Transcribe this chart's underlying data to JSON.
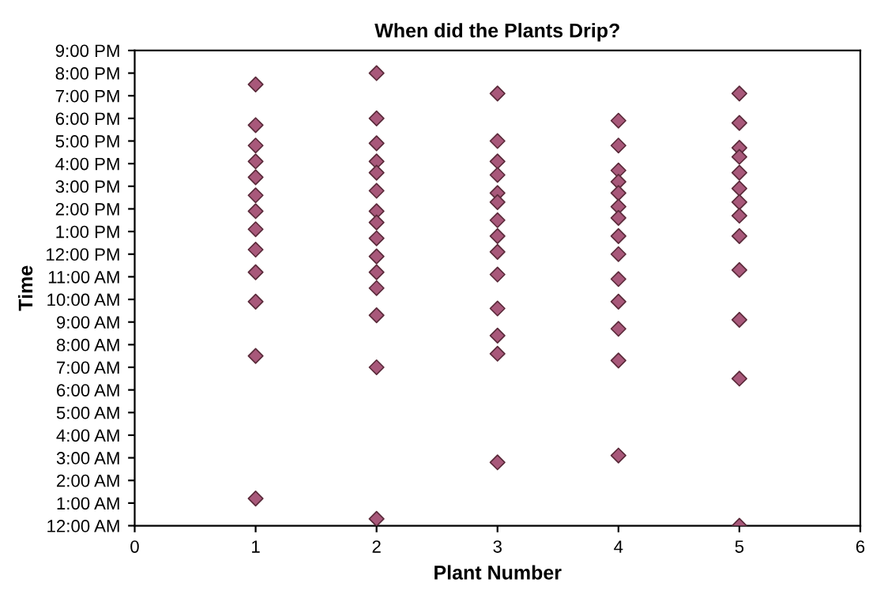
{
  "chart_data": {
    "type": "scatter",
    "title": "When did the Plants Drip?",
    "xlabel": "Plant Number",
    "ylabel": "Time",
    "series": [
      {
        "color": "#a8587a",
        "x": [
          1,
          1,
          1,
          1,
          1,
          1,
          1,
          1,
          1,
          1,
          1,
          1,
          1
        ],
        "values": [
          19.5,
          17.7,
          16.8,
          16.1,
          15.4,
          14.6,
          13.9,
          13.1,
          12.2,
          11.2,
          9.9,
          7.5,
          1.2
        ]
      },
      {
        "color": "#a8587a",
        "x": [
          2,
          2,
          2,
          2,
          2,
          2,
          2,
          2,
          2,
          2,
          2,
          2,
          2,
          2,
          2
        ],
        "values": [
          20.0,
          18.0,
          16.9,
          16.1,
          15.6,
          14.8,
          13.9,
          13.4,
          12.7,
          11.9,
          11.2,
          10.5,
          9.3,
          7.0,
          0.3
        ]
      },
      {
        "color": "#a8587a",
        "x": [
          3,
          3,
          3,
          3,
          3,
          3,
          3,
          3,
          3,
          3,
          3,
          3,
          3,
          3
        ],
        "values": [
          19.1,
          17.0,
          16.1,
          15.5,
          14.7,
          14.3,
          13.5,
          12.8,
          12.1,
          11.1,
          9.6,
          8.4,
          7.6,
          2.8
        ]
      },
      {
        "color": "#a8587a",
        "x": [
          4,
          4,
          4,
          4,
          4,
          4,
          4,
          4,
          4,
          4,
          4,
          4,
          4,
          4
        ],
        "values": [
          17.9,
          16.8,
          15.7,
          15.2,
          14.7,
          14.1,
          13.6,
          12.8,
          12.0,
          10.9,
          9.9,
          8.7,
          7.3,
          3.1
        ]
      },
      {
        "color": "#a8587a",
        "x": [
          5,
          5,
          5,
          5,
          5,
          5,
          5,
          5,
          5,
          5,
          5,
          5,
          5
        ],
        "values": [
          19.1,
          17.8,
          16.7,
          16.3,
          15.6,
          14.9,
          14.3,
          13.7,
          12.8,
          11.3,
          9.1,
          6.5,
          0.0
        ]
      }
    ],
    "xlim": [
      0,
      6
    ],
    "xticks": [
      0,
      1,
      2,
      3,
      4,
      5,
      6
    ],
    "ylim": [
      0,
      21
    ],
    "yticks": [
      {
        "value": 0,
        "label": "12:00 AM"
      },
      {
        "value": 1,
        "label": "1:00 AM"
      },
      {
        "value": 2,
        "label": "2:00 AM"
      },
      {
        "value": 3,
        "label": "3:00 AM"
      },
      {
        "value": 4,
        "label": "4:00 AM"
      },
      {
        "value": 5,
        "label": "5:00 AM"
      },
      {
        "value": 6,
        "label": "6:00 AM"
      },
      {
        "value": 7,
        "label": "7:00 AM"
      },
      {
        "value": 8,
        "label": "8:00 AM"
      },
      {
        "value": 9,
        "label": "9:00 AM"
      },
      {
        "value": 10,
        "label": "10:00 AM"
      },
      {
        "value": 11,
        "label": "11:00 AM"
      },
      {
        "value": 12,
        "label": "12:00 PM"
      },
      {
        "value": 13,
        "label": "1:00 PM"
      },
      {
        "value": 14,
        "label": "2:00 PM"
      },
      {
        "value": 15,
        "label": "3:00 PM"
      },
      {
        "value": 16,
        "label": "4:00 PM"
      },
      {
        "value": 17,
        "label": "5:00 PM"
      },
      {
        "value": 18,
        "label": "6:00 PM"
      },
      {
        "value": 19,
        "label": "7:00 PM"
      },
      {
        "value": 20,
        "label": "8:00 PM"
      },
      {
        "value": 21,
        "label": "9:00 PM"
      }
    ],
    "marker": "diamond",
    "grid": false,
    "legend": false
  }
}
